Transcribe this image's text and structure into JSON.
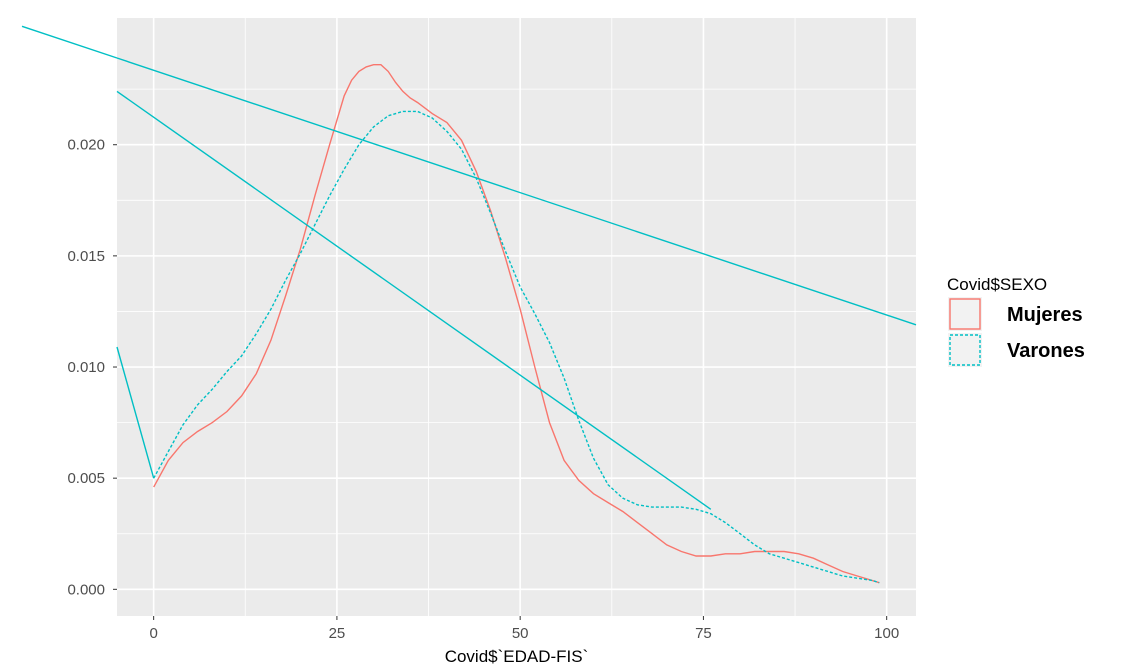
{
  "chart_data": {
    "type": "line",
    "title": "",
    "xlabel": "Covid$`EDAD-FIS`",
    "ylabel": "",
    "xlim": [
      -5,
      104
    ],
    "ylim": [
      -0.0012,
      0.0257
    ],
    "x_ticks": [
      0,
      25,
      50,
      75,
      100
    ],
    "x_tick_labels": [
      "0",
      "25",
      "50",
      "75",
      "100"
    ],
    "y_ticks": [
      0.0,
      0.005,
      0.01,
      0.015,
      0.02
    ],
    "y_tick_labels": [
      "0.000",
      "0.005",
      "0.010",
      "0.015",
      "0.020"
    ],
    "grid": true,
    "legend": {
      "title": "Covid$SEXO",
      "position": "right"
    },
    "series": [
      {
        "name": "Mujeres",
        "color": "#f8766d",
        "dash": "solid",
        "x": [
          0,
          2,
          4,
          6,
          8,
          10,
          12,
          14,
          16,
          18,
          20,
          22,
          24,
          26,
          27,
          28,
          29,
          30,
          31,
          32,
          33,
          34,
          35,
          36,
          38,
          40,
          42,
          44,
          46,
          48,
          50,
          52,
          54,
          56,
          58,
          60,
          62,
          64,
          66,
          68,
          70,
          72,
          74,
          76,
          78,
          80,
          82,
          84,
          86,
          88,
          90,
          92,
          94,
          96,
          98,
          99
        ],
        "y": [
          0.0046,
          0.0058,
          0.0066,
          0.0071,
          0.0075,
          0.008,
          0.0087,
          0.0097,
          0.0112,
          0.0132,
          0.0153,
          0.0177,
          0.02,
          0.0222,
          0.0229,
          0.0233,
          0.0235,
          0.0236,
          0.0236,
          0.0233,
          0.0228,
          0.0224,
          0.0221,
          0.0219,
          0.0214,
          0.021,
          0.0202,
          0.0188,
          0.017,
          0.0149,
          0.0126,
          0.01,
          0.0075,
          0.0058,
          0.0049,
          0.0043,
          0.0039,
          0.0035,
          0.003,
          0.0025,
          0.002,
          0.0017,
          0.0015,
          0.0015,
          0.0016,
          0.0016,
          0.0017,
          0.0017,
          0.0017,
          0.0016,
          0.0014,
          0.0011,
          0.0008,
          0.0006,
          0.0004,
          0.0003
        ]
      },
      {
        "name": "Varones",
        "color": "#00bfc4",
        "dash": "dashed",
        "x": [
          0,
          2,
          4,
          6,
          8,
          10,
          12,
          14,
          16,
          18,
          20,
          22,
          24,
          26,
          28,
          30,
          32,
          34,
          36,
          38,
          40,
          42,
          44,
          46,
          48,
          50,
          52,
          54,
          56,
          58,
          60,
          62,
          64,
          66,
          68,
          70,
          72,
          74,
          76,
          78,
          80,
          82,
          84,
          86,
          88,
          90,
          92,
          94,
          96,
          98,
          99
        ],
        "y": [
          0.005,
          0.0062,
          0.0074,
          0.0083,
          0.009,
          0.0098,
          0.0105,
          0.0115,
          0.0126,
          0.0139,
          0.0151,
          0.0164,
          0.0177,
          0.0189,
          0.02,
          0.0208,
          0.0213,
          0.0215,
          0.0215,
          0.0212,
          0.0206,
          0.0198,
          0.0185,
          0.0169,
          0.0152,
          0.0136,
          0.0124,
          0.0111,
          0.0095,
          0.0076,
          0.0059,
          0.0047,
          0.0041,
          0.0038,
          0.0037,
          0.0037,
          0.0037,
          0.0036,
          0.0034,
          0.003,
          0.0025,
          0.002,
          0.0016,
          0.0014,
          0.0012,
          0.001,
          0.0008,
          0.0006,
          0.0005,
          0.0004,
          0.0003
        ]
      }
    ],
    "annotation_lines": [
      {
        "color": "#00bfc4",
        "x": [
          -5,
          0
        ],
        "y": [
          0.0109,
          0.005
        ]
      },
      {
        "color": "#00bfc4",
        "x": [
          -5,
          76
        ],
        "y": [
          0.0224,
          0.0036
        ]
      },
      {
        "color": "#00bfc4",
        "x": [
          -5,
          104
        ],
        "y": [
          0.0239,
          0.0119
        ]
      }
    ]
  }
}
